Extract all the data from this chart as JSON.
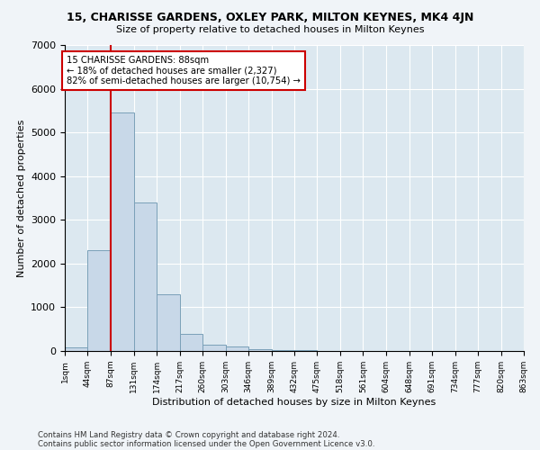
{
  "title": "15, CHARISSE GARDENS, OXLEY PARK, MILTON KEYNES, MK4 4JN",
  "subtitle": "Size of property relative to detached houses in Milton Keynes",
  "xlabel": "Distribution of detached houses by size in Milton Keynes",
  "ylabel": "Number of detached properties",
  "bar_color": "#c8d8e8",
  "bar_edgecolor": "#7aa0b8",
  "vline_x": 88,
  "vline_color": "#cc0000",
  "annotation_title": "15 CHARISSE GARDENS: 88sqm",
  "annotation_line1": "← 18% of detached houses are smaller (2,327)",
  "annotation_line2": "82% of semi-detached houses are larger (10,754) →",
  "annotation_box_color": "#cc0000",
  "bin_edges": [
    1,
    44,
    87,
    131,
    174,
    217,
    260,
    303,
    346,
    389,
    432,
    475,
    518,
    561,
    604,
    648,
    691,
    734,
    777,
    820,
    863
  ],
  "bar_heights": [
    75,
    2300,
    5450,
    3400,
    1300,
    400,
    150,
    100,
    50,
    30,
    15,
    10,
    5,
    5,
    3,
    2,
    2,
    1,
    1,
    1
  ],
  "ylim": [
    0,
    7000
  ],
  "yticks": [
    0,
    1000,
    2000,
    3000,
    4000,
    5000,
    6000,
    7000
  ],
  "footnote1": "Contains HM Land Registry data © Crown copyright and database right 2024.",
  "footnote2": "Contains public sector information licensed under the Open Government Licence v3.0.",
  "fig_background": "#f0f4f8",
  "plot_background": "#dce8f0"
}
